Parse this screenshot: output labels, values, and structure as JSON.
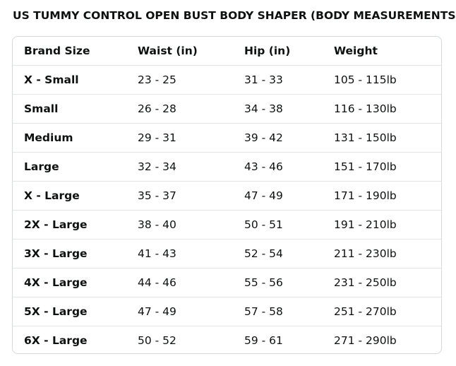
{
  "title": "US TUMMY CONTROL OPEN BUST BODY SHAPER (BODY MEASUREMENTS)",
  "table": {
    "headers": [
      "Brand Size",
      "Waist (in)",
      "Hip (in)",
      "Weight"
    ],
    "rows": [
      [
        "X - Small",
        "23 - 25",
        "31 - 33",
        "105 - 115lb"
      ],
      [
        "Small",
        "26 - 28",
        "34 - 38",
        "116 - 130lb"
      ],
      [
        "Medium",
        "29 - 31",
        "39 - 42",
        "131 - 150lb"
      ],
      [
        "Large",
        "32 - 34",
        "43 - 46",
        "151 - 170lb"
      ],
      [
        "X - Large",
        "35 - 37",
        "47 - 49",
        "171 - 190lb"
      ],
      [
        "2X - Large",
        "38 - 40",
        "50 - 51",
        "191 - 210lb"
      ],
      [
        "3X - Large",
        "41 - 43",
        "52 - 54",
        "211 - 230lb"
      ],
      [
        "4X - Large",
        "44 - 46",
        "55 - 56",
        "231 - 250lb"
      ],
      [
        "5X - Large",
        "47 - 49",
        "57 - 58",
        "251 - 270lb"
      ],
      [
        "6X - Large",
        "50 - 52",
        "59 - 61",
        "271 - 290lb"
      ]
    ]
  },
  "colors": {
    "text": "#0f1111",
    "border": "#d5d9d9",
    "row_divider": "#e3e6e6"
  }
}
